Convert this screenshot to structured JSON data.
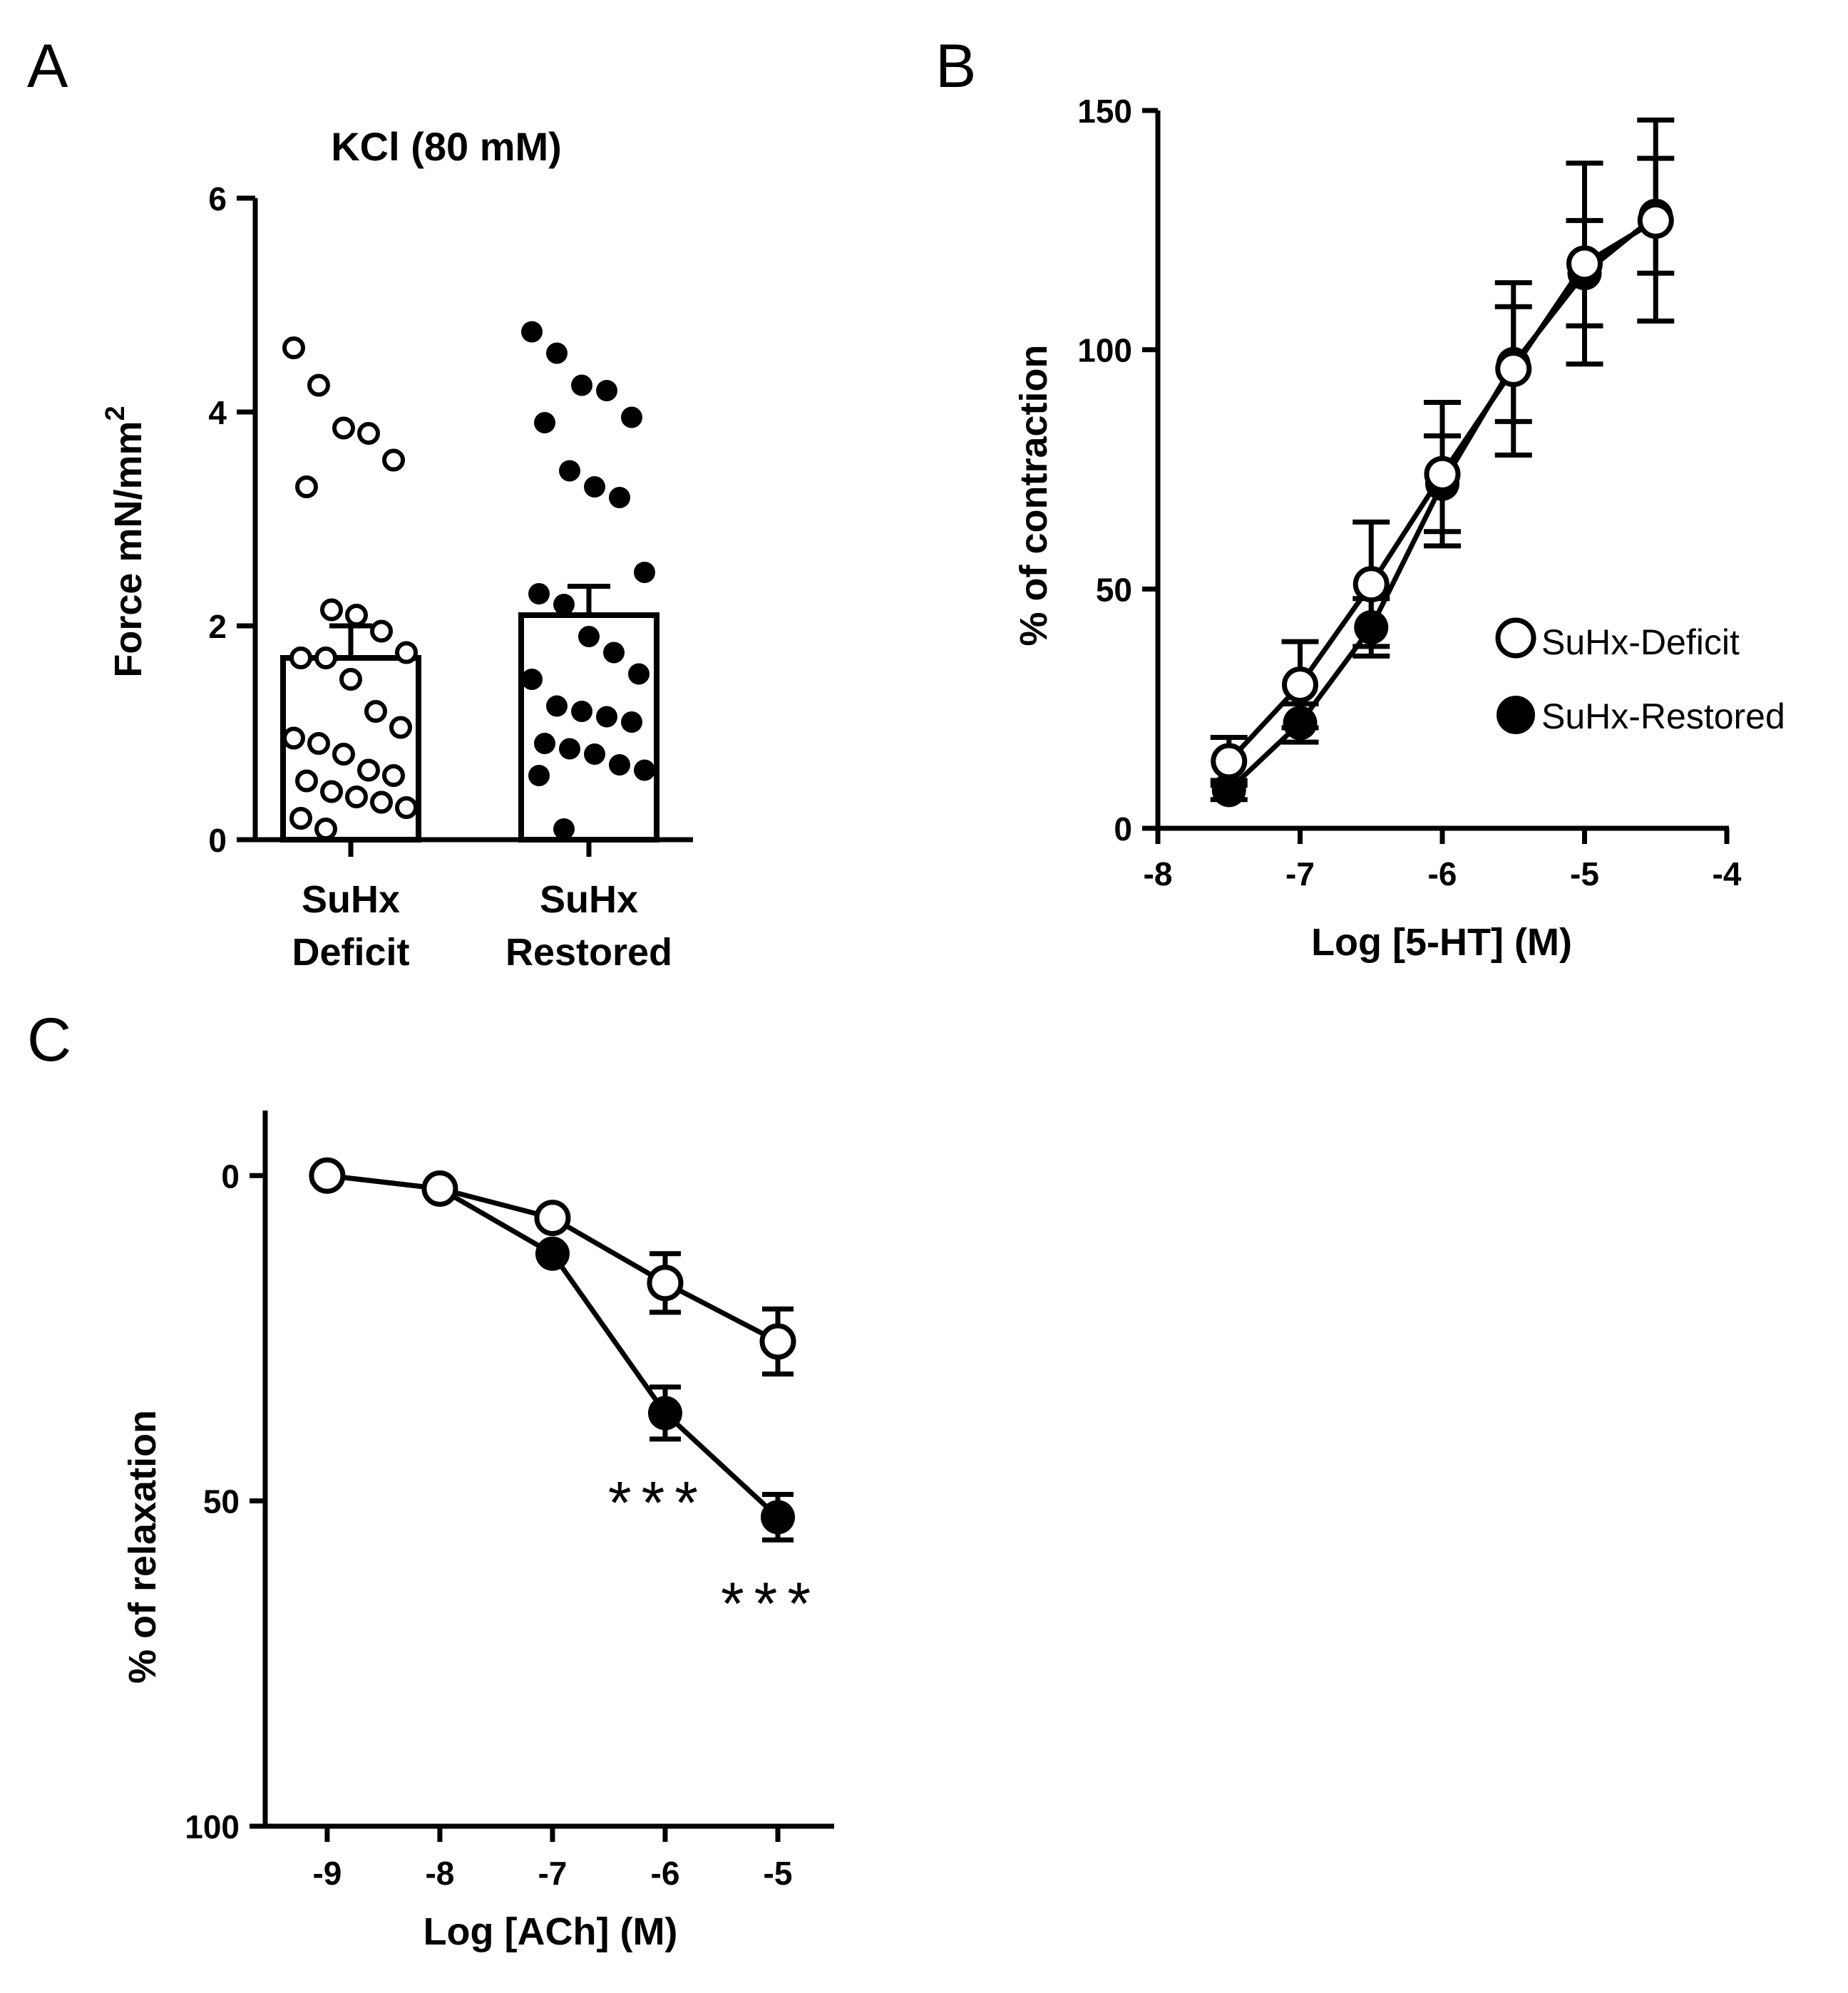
{
  "panels": {
    "a": "A",
    "b": "B",
    "c": "C"
  },
  "chart_data": [
    {
      "panel": "A",
      "type": "bar",
      "title": "KCl (80 mM)",
      "ylabel": "Force mN/mm",
      "ylabel_sup": "2",
      "ylim": [
        0,
        6
      ],
      "yticks": [
        0,
        2,
        4,
        6
      ],
      "categories": [
        {
          "line1": "SuHx",
          "line2": "Deficit"
        },
        {
          "line1": "SuHx",
          "line2": "Restored"
        }
      ],
      "series": [
        {
          "name": "SuHx Deficit",
          "marker": "open",
          "mean": 1.7,
          "sem": 0.3,
          "points": [
            4.6,
            4.25,
            3.85,
            3.8,
            3.55,
            3.3,
            2.15,
            2.1,
            1.95,
            1.75,
            1.7,
            1.7,
            1.5,
            1.2,
            1.05,
            0.95,
            0.9,
            0.8,
            0.65,
            0.6,
            0.55,
            0.45,
            0.4,
            0.35,
            0.3,
            0.2,
            0.1
          ]
        },
        {
          "name": "SuHx Restored",
          "marker": "filled",
          "mean": 2.1,
          "sem": 0.27,
          "points": [
            4.75,
            4.55,
            4.25,
            4.2,
            3.95,
            3.9,
            3.45,
            3.3,
            3.2,
            2.5,
            2.3,
            2.2,
            1.9,
            1.75,
            1.55,
            1.5,
            1.25,
            1.2,
            1.15,
            1.1,
            0.9,
            0.85,
            0.8,
            0.7,
            0.65,
            0.6,
            0.1
          ]
        }
      ]
    },
    {
      "panel": "B",
      "type": "line",
      "xlabel": "Log [5-HT] (M)",
      "ylabel": "% of contraction",
      "xlim": [
        -8,
        -4
      ],
      "ylim": [
        0,
        150
      ],
      "xticks": [
        -8,
        -7,
        -6,
        -5,
        -4
      ],
      "yticks": [
        0,
        50,
        100,
        150
      ],
      "x": [
        -7.5,
        -7,
        -6.5,
        -6,
        -5.5,
        -5,
        -4.5
      ],
      "legend": "right",
      "series": [
        {
          "name": "SuHx-Deficit",
          "marker": "open",
          "values": [
            14,
            30,
            51,
            74,
            96,
            118,
            127
          ],
          "err": [
            5,
            9,
            13,
            15,
            18,
            21,
            21
          ]
        },
        {
          "name": "SuHx-Restored",
          "marker": "filled",
          "values": [
            8,
            22,
            42,
            72,
            97,
            116,
            128
          ],
          "err": [
            2,
            4,
            6,
            10,
            12,
            11,
            12
          ]
        }
      ]
    },
    {
      "panel": "C",
      "type": "line",
      "xlabel": "Log [ACh] (M)",
      "ylabel": "% of relaxation",
      "xlim": [
        -9.55,
        -4.5
      ],
      "ylim": [
        -10,
        100
      ],
      "y_inverted": true,
      "xticks": [
        -9,
        -8,
        -7,
        -6,
        -5
      ],
      "yticks": [
        0,
        50,
        100
      ],
      "x": [
        -9,
        -8,
        -7,
        -6,
        -5
      ],
      "series": [
        {
          "name": "SuHx-Deficit",
          "marker": "open",
          "values": [
            0,
            2,
            6.5,
            16.5,
            25.5
          ],
          "err": [
            0,
            0,
            0,
            4.5,
            5
          ]
        },
        {
          "name": "SuHx-Restored",
          "marker": "filled",
          "values": [
            0,
            2,
            12,
            36.5,
            52.5
          ],
          "err": [
            0,
            0,
            0,
            4,
            3.5
          ]
        }
      ],
      "annotations": [
        {
          "x": -6,
          "text": "***"
        },
        {
          "x": -5,
          "text": "***"
        }
      ]
    }
  ]
}
